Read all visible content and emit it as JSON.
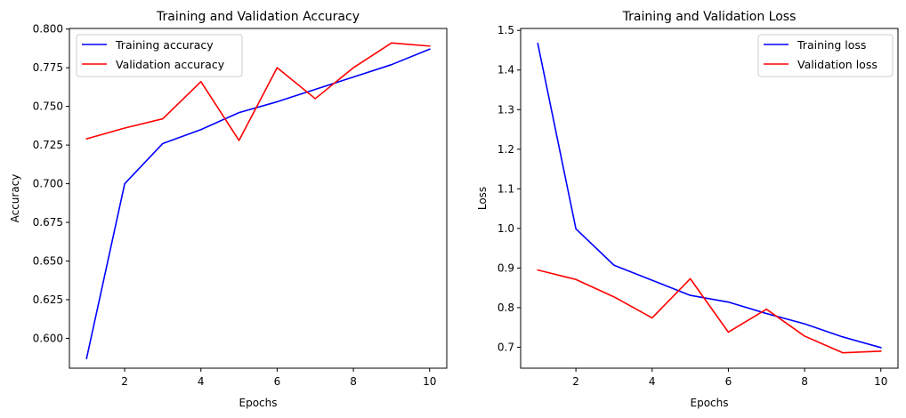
{
  "chart_data": [
    {
      "type": "line",
      "title": "Training and Validation Accuracy",
      "xlabel": "Epochs",
      "ylabel": "Accuracy",
      "xlim": [
        0.55,
        10.45
      ],
      "ylim": [
        0.5807,
        0.8004
      ],
      "x_ticks": [
        2,
        4,
        6,
        8,
        10
      ],
      "y_ticks": [
        0.6,
        0.625,
        0.65,
        0.675,
        0.7,
        0.725,
        0.75,
        0.775,
        0.8
      ],
      "y_tick_labels": [
        "0.600",
        "0.625",
        "0.650",
        "0.675",
        "0.700",
        "0.725",
        "0.750",
        "0.775",
        "0.800"
      ],
      "grid": false,
      "legend_position": "top-left",
      "x": [
        1,
        2,
        3,
        4,
        5,
        6,
        7,
        8,
        9,
        10
      ],
      "series": [
        {
          "name": "Training accuracy",
          "color": "#0000ff",
          "values": [
            0.587,
            0.7,
            0.726,
            0.735,
            0.746,
            0.753,
            0.761,
            0.769,
            0.777,
            0.787
          ]
        },
        {
          "name": "Validation accuracy",
          "color": "#ff0000",
          "values": [
            0.729,
            0.736,
            0.742,
            0.766,
            0.728,
            0.775,
            0.755,
            0.775,
            0.791,
            0.789
          ]
        }
      ]
    },
    {
      "type": "line",
      "title": "Training and Validation Loss",
      "xlabel": "Epochs",
      "ylabel": "Loss",
      "xlim": [
        0.55,
        10.45
      ],
      "ylim": [
        0.647,
        1.505
      ],
      "x_ticks": [
        2,
        4,
        6,
        8,
        10
      ],
      "y_ticks": [
        0.7,
        0.8,
        0.9,
        1.0,
        1.1,
        1.2,
        1.3,
        1.4,
        1.5
      ],
      "y_tick_labels": [
        "0.7",
        "0.8",
        "0.9",
        "1.0",
        "1.1",
        "1.2",
        "1.3",
        "1.4",
        "1.5"
      ],
      "grid": false,
      "legend_position": "top-right",
      "x": [
        1,
        2,
        3,
        4,
        5,
        6,
        7,
        8,
        9,
        10
      ],
      "series": [
        {
          "name": "Training loss",
          "color": "#0000ff",
          "values": [
            1.467,
            0.999,
            0.907,
            0.869,
            0.831,
            0.814,
            0.785,
            0.759,
            0.726,
            0.699
          ]
        },
        {
          "name": "Validation loss",
          "color": "#ff0000",
          "values": [
            0.895,
            0.871,
            0.827,
            0.774,
            0.873,
            0.738,
            0.796,
            0.728,
            0.686,
            0.69
          ]
        }
      ]
    }
  ]
}
